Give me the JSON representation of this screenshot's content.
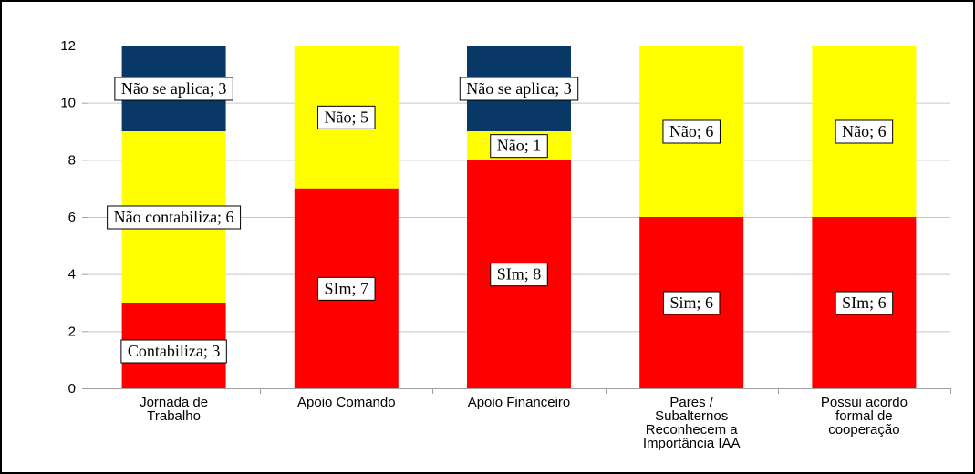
{
  "chart_data": {
    "type": "bar",
    "stacked": true,
    "ylim": [
      0,
      12
    ],
    "yticks": [
      0,
      2,
      4,
      6,
      8,
      10,
      12
    ],
    "grid": true,
    "categories": [
      [
        "Jornada de",
        "Trabalho"
      ],
      [
        "Apoio Comando"
      ],
      [
        "Apoio Financeiro"
      ],
      [
        "Pares /",
        "Subalternos",
        "Reconhecem a",
        "Importância IAA"
      ],
      [
        "Possui acordo",
        "formal de",
        "cooperação"
      ]
    ],
    "colors": {
      "bottom": "#ff0000",
      "middle": "#ffff00",
      "top": "#0a3866",
      "grid": "#c8c8c8"
    },
    "bars": [
      {
        "segments": [
          {
            "value": 3,
            "color": "#ff0000",
            "label": "Contabiliza; 3",
            "label_pos": "below"
          },
          {
            "value": 6,
            "color": "#ffff00",
            "label": "Não contabiliza; 6"
          },
          {
            "value": 3,
            "color": "#0a3866",
            "label": "Não se aplica; 3"
          }
        ]
      },
      {
        "segments": [
          {
            "value": 7,
            "color": "#ff0000",
            "label": "SIm; 7"
          },
          {
            "value": 5,
            "color": "#ffff00",
            "label": "Não; 5"
          }
        ]
      },
      {
        "segments": [
          {
            "value": 8,
            "color": "#ff0000",
            "label": "SIm; 8"
          },
          {
            "value": 1,
            "color": "#ffff00",
            "label": "Não; 1"
          },
          {
            "value": 3,
            "color": "#0a3866",
            "label": "Não se aplica; 3"
          }
        ]
      },
      {
        "segments": [
          {
            "value": 6,
            "color": "#ff0000",
            "label": "Sim; 6"
          },
          {
            "value": 6,
            "color": "#ffff00",
            "label": "Não; 6"
          }
        ]
      },
      {
        "segments": [
          {
            "value": 6,
            "color": "#ff0000",
            "label": "SIm; 6"
          },
          {
            "value": 6,
            "color": "#ffff00",
            "label": "Não; 6"
          }
        ]
      }
    ]
  }
}
